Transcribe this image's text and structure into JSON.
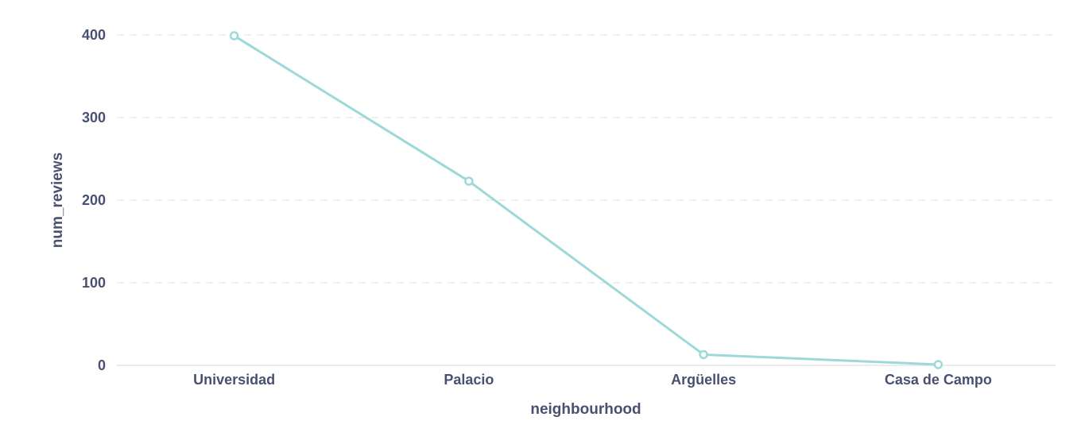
{
  "chart_data": {
    "type": "line",
    "title": "",
    "xlabel": "neighbourhood",
    "ylabel": "num_reviews",
    "categories": [
      "Universidad",
      "Palacio",
      "Argüelles",
      "Casa de Campo"
    ],
    "series": [
      {
        "values": [
          399,
          223,
          13,
          1
        ]
      }
    ],
    "ylim": [
      0,
      400
    ],
    "yticks": [
      "0",
      "100",
      "200",
      "300",
      "400"
    ],
    "grid": true,
    "legend": "none",
    "colors": {
      "line": "#9dd9d8",
      "text": "#4a5170",
      "grid": "#e4e6ea"
    }
  }
}
